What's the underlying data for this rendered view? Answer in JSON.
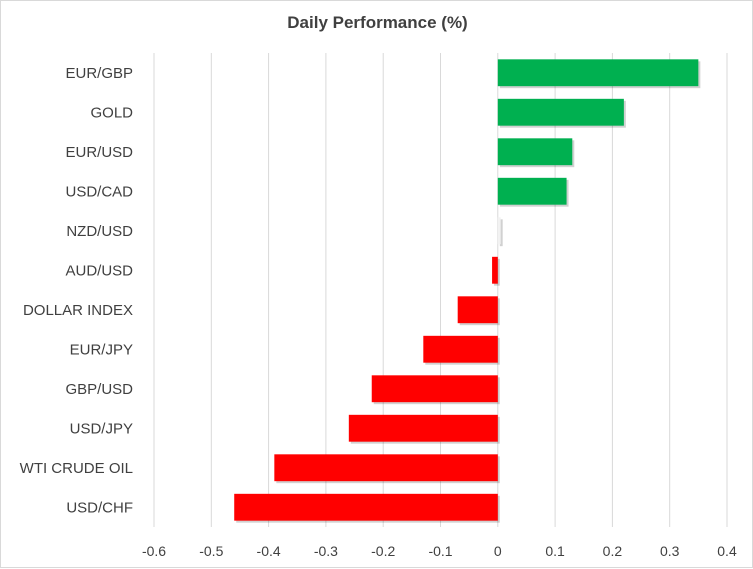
{
  "chart_data": {
    "type": "bar",
    "orientation": "horizontal",
    "title": "Daily Performance  (%)",
    "xlabel": "",
    "ylabel": "",
    "categories": [
      "EUR/GBP",
      "GOLD",
      "EUR/USD",
      "USD/CAD",
      "NZD/USD",
      "AUD/USD",
      "DOLLAR INDEX",
      "EUR/JPY",
      "GBP/USD",
      "USD/JPY",
      "WTI CRUDE OIL",
      "USD/CHF"
    ],
    "values": [
      0.35,
      0.22,
      0.13,
      0.12,
      0.005,
      -0.01,
      -0.07,
      -0.13,
      -0.22,
      -0.26,
      -0.39,
      -0.46
    ],
    "xlim": [
      -0.6,
      0.4
    ],
    "xticks": [
      "-0.6",
      "-0.5",
      "-0.4",
      "-0.3",
      "-0.2",
      "-0.1",
      "0",
      "0.1",
      "0.2",
      "0.3",
      "0.4"
    ],
    "grid": "vertical",
    "legend": "none",
    "colors": {
      "positive": "#00b050",
      "negative": "#ff0000",
      "flat": "#f2f2f2",
      "grid": "#d9d9d9",
      "text": "#404040"
    }
  }
}
